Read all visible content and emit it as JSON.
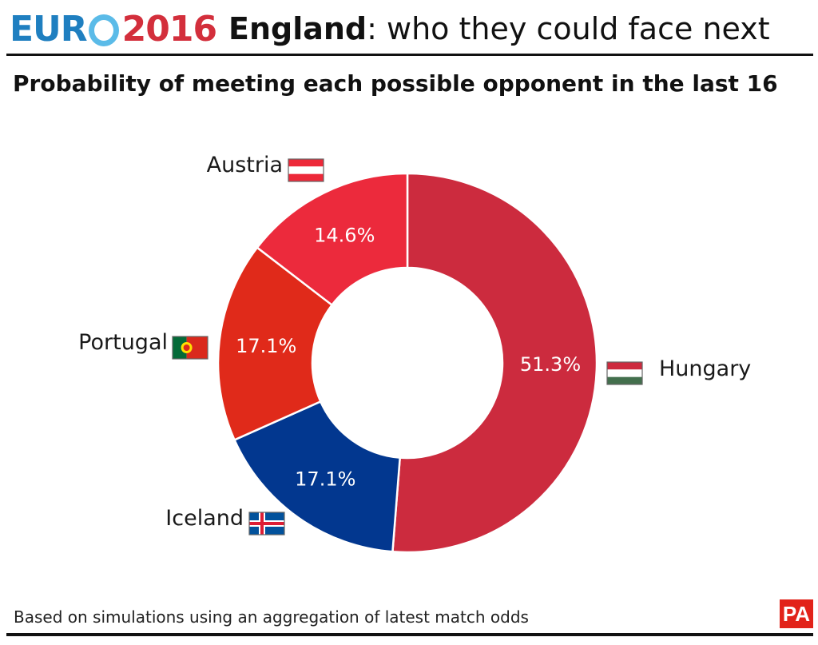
{
  "header": {
    "logo_euro": "EUR",
    "logo_year": "2016",
    "title_bold": "England",
    "title_rest": ": who they could face next"
  },
  "colors": {
    "hungary": "#cc2b3e",
    "austria": "#ec2a3c",
    "portugal": "#e02a1a",
    "iceland": "#02378f"
  },
  "chart_data": {
    "type": "pie",
    "subtitle": "Probability of meeting each possible opponent in the last 16",
    "unit": "%",
    "slices": [
      {
        "label": "Hungary",
        "value": 51.3,
        "value_label": "51.3%",
        "color": "#cc2b3e",
        "flag": "hungary-flag-icon"
      },
      {
        "label": "Iceland",
        "value": 17.1,
        "value_label": "17.1%",
        "color": "#02378f",
        "flag": "iceland-flag-icon"
      },
      {
        "label": "Portugal",
        "value": 17.1,
        "value_label": "17.1%",
        "color": "#e02a1a",
        "flag": "portugal-flag-icon"
      },
      {
        "label": "Austria",
        "value": 14.6,
        "value_label": "14.6%",
        "color": "#ec2a3c",
        "flag": "austria-flag-icon"
      }
    ]
  },
  "footer": {
    "source": "Based on simulations using an aggregation of latest match odds",
    "agency": "PA"
  }
}
